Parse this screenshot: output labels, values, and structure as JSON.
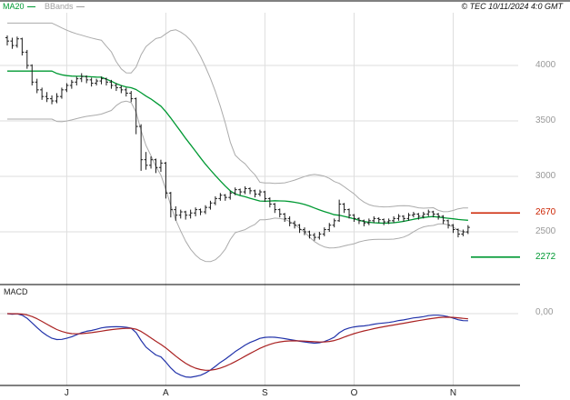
{
  "header": {
    "ma20_label": "MA20",
    "bbands_label": "BBands",
    "copyright": "© TEC 10/11/2024 4:0 GMT"
  },
  "macd_pane": {
    "label": "MACD",
    "zero_label": "0,00"
  },
  "colors": {
    "ma20": "#009933",
    "bbands": "#ababab",
    "candle": "#1a1a1a",
    "macd_line": "#2233aa",
    "macd_signal": "#aa2222",
    "grid": "#dedede",
    "axis_text": "#999999",
    "resistance": "#cc2200",
    "support": "#009933"
  },
  "chart_data": {
    "type": "candlestick",
    "title": "",
    "xlabel": "",
    "ylabel": "",
    "price_ticks": [
      4000,
      3500,
      3000,
      2500
    ],
    "month_labels": [
      "J",
      "A",
      "S",
      "O",
      "N"
    ],
    "month_start_indices": [
      12,
      32,
      52,
      70,
      90
    ],
    "levels": [
      {
        "label": "2670",
        "value": 2670,
        "color": "#cc2200",
        "role": "resistance"
      },
      {
        "label": "2272",
        "value": 2272,
        "color": "#009933",
        "role": "support"
      }
    ],
    "series": {
      "candles_ohlc": [
        [
          4250,
          4270,
          4180,
          4220
        ],
        [
          4220,
          4250,
          4150,
          4180
        ],
        [
          4180,
          4260,
          4160,
          4240
        ],
        [
          4240,
          4250,
          4090,
          4120
        ],
        [
          4120,
          4140,
          3970,
          4000
        ],
        [
          4000,
          4010,
          3820,
          3850
        ],
        [
          3850,
          3880,
          3750,
          3780
        ],
        [
          3780,
          3800,
          3690,
          3720
        ],
        [
          3720,
          3760,
          3670,
          3700
        ],
        [
          3700,
          3730,
          3650,
          3680
        ],
        [
          3680,
          3750,
          3660,
          3720
        ],
        [
          3720,
          3800,
          3700,
          3780
        ],
        [
          3780,
          3840,
          3760,
          3820
        ],
        [
          3820,
          3870,
          3790,
          3850
        ],
        [
          3850,
          3900,
          3820,
          3880
        ],
        [
          3880,
          3930,
          3850,
          3900
        ],
        [
          3900,
          3910,
          3840,
          3870
        ],
        [
          3870,
          3890,
          3810,
          3840
        ],
        [
          3840,
          3880,
          3820,
          3860
        ],
        [
          3860,
          3900,
          3830,
          3880
        ],
        [
          3880,
          3890,
          3820,
          3850
        ],
        [
          3850,
          3870,
          3790,
          3820
        ],
        [
          3820,
          3840,
          3770,
          3800
        ],
        [
          3800,
          3820,
          3750,
          3780
        ],
        [
          3780,
          3800,
          3720,
          3750
        ],
        [
          3750,
          3770,
          3670,
          3700
        ],
        [
          3700,
          3710,
          3380,
          3450
        ],
        [
          3450,
          3470,
          3050,
          3150
        ],
        [
          3150,
          3220,
          3060,
          3100
        ],
        [
          3100,
          3180,
          3070,
          3150
        ],
        [
          3150,
          3160,
          3030,
          3080
        ],
        [
          3080,
          3150,
          3040,
          3120
        ],
        [
          3120,
          3130,
          2800,
          2850
        ],
        [
          2850,
          2860,
          2630,
          2700
        ],
        [
          2700,
          2730,
          2600,
          2650
        ],
        [
          2650,
          2700,
          2620,
          2680
        ],
        [
          2680,
          2690,
          2610,
          2650
        ],
        [
          2650,
          2700,
          2620,
          2670
        ],
        [
          2670,
          2720,
          2640,
          2700
        ],
        [
          2700,
          2710,
          2650,
          2680
        ],
        [
          2680,
          2740,
          2660,
          2720
        ],
        [
          2720,
          2780,
          2700,
          2760
        ],
        [
          2760,
          2820,
          2740,
          2800
        ],
        [
          2800,
          2850,
          2780,
          2830
        ],
        [
          2830,
          2840,
          2780,
          2810
        ],
        [
          2810,
          2870,
          2790,
          2850
        ],
        [
          2850,
          2900,
          2830,
          2880
        ],
        [
          2880,
          2890,
          2830,
          2860
        ],
        [
          2860,
          2910,
          2840,
          2890
        ],
        [
          2890,
          2900,
          2840,
          2870
        ],
        [
          2870,
          2880,
          2810,
          2840
        ],
        [
          2840,
          2880,
          2820,
          2860
        ],
        [
          2860,
          2870,
          2770,
          2800
        ],
        [
          2800,
          2810,
          2720,
          2750
        ],
        [
          2750,
          2760,
          2670,
          2700
        ],
        [
          2700,
          2710,
          2630,
          2660
        ],
        [
          2660,
          2670,
          2590,
          2620
        ],
        [
          2620,
          2640,
          2550,
          2580
        ],
        [
          2580,
          2600,
          2530,
          2560
        ],
        [
          2560,
          2570,
          2490,
          2520
        ],
        [
          2520,
          2540,
          2470,
          2500
        ],
        [
          2500,
          2510,
          2440,
          2470
        ],
        [
          2470,
          2490,
          2420,
          2450
        ],
        [
          2450,
          2500,
          2430,
          2480
        ],
        [
          2480,
          2540,
          2460,
          2520
        ],
        [
          2520,
          2580,
          2500,
          2560
        ],
        [
          2560,
          2620,
          2540,
          2600
        ],
        [
          2600,
          2790,
          2590,
          2750
        ],
        [
          2750,
          2760,
          2670,
          2700
        ],
        [
          2700,
          2710,
          2620,
          2650
        ],
        [
          2650,
          2660,
          2590,
          2620
        ],
        [
          2620,
          2630,
          2570,
          2600
        ],
        [
          2600,
          2610,
          2550,
          2580
        ],
        [
          2580,
          2620,
          2560,
          2600
        ],
        [
          2600,
          2640,
          2580,
          2620
        ],
        [
          2620,
          2630,
          2580,
          2610
        ],
        [
          2610,
          2620,
          2560,
          2590
        ],
        [
          2590,
          2620,
          2570,
          2600
        ],
        [
          2600,
          2640,
          2580,
          2620
        ],
        [
          2620,
          2660,
          2600,
          2640
        ],
        [
          2640,
          2650,
          2590,
          2620
        ],
        [
          2620,
          2670,
          2600,
          2650
        ],
        [
          2650,
          2680,
          2630,
          2660
        ],
        [
          2660,
          2670,
          2610,
          2640
        ],
        [
          2640,
          2680,
          2620,
          2660
        ],
        [
          2660,
          2700,
          2640,
          2680
        ],
        [
          2680,
          2690,
          2630,
          2660
        ],
        [
          2660,
          2670,
          2610,
          2640
        ],
        [
          2640,
          2650,
          2570,
          2600
        ],
        [
          2600,
          2610,
          2530,
          2560
        ],
        [
          2560,
          2570,
          2490,
          2520
        ],
        [
          2520,
          2530,
          2450,
          2480
        ],
        [
          2480,
          2520,
          2460,
          2500
        ],
        [
          2500,
          2560,
          2480,
          2540
        ]
      ],
      "indicators": {
        "ma_period": 20,
        "bb_period": 20,
        "bb_stddev": 2,
        "macd_fast": 12,
        "macd_slow": 26,
        "macd_signal": 9
      }
    }
  }
}
